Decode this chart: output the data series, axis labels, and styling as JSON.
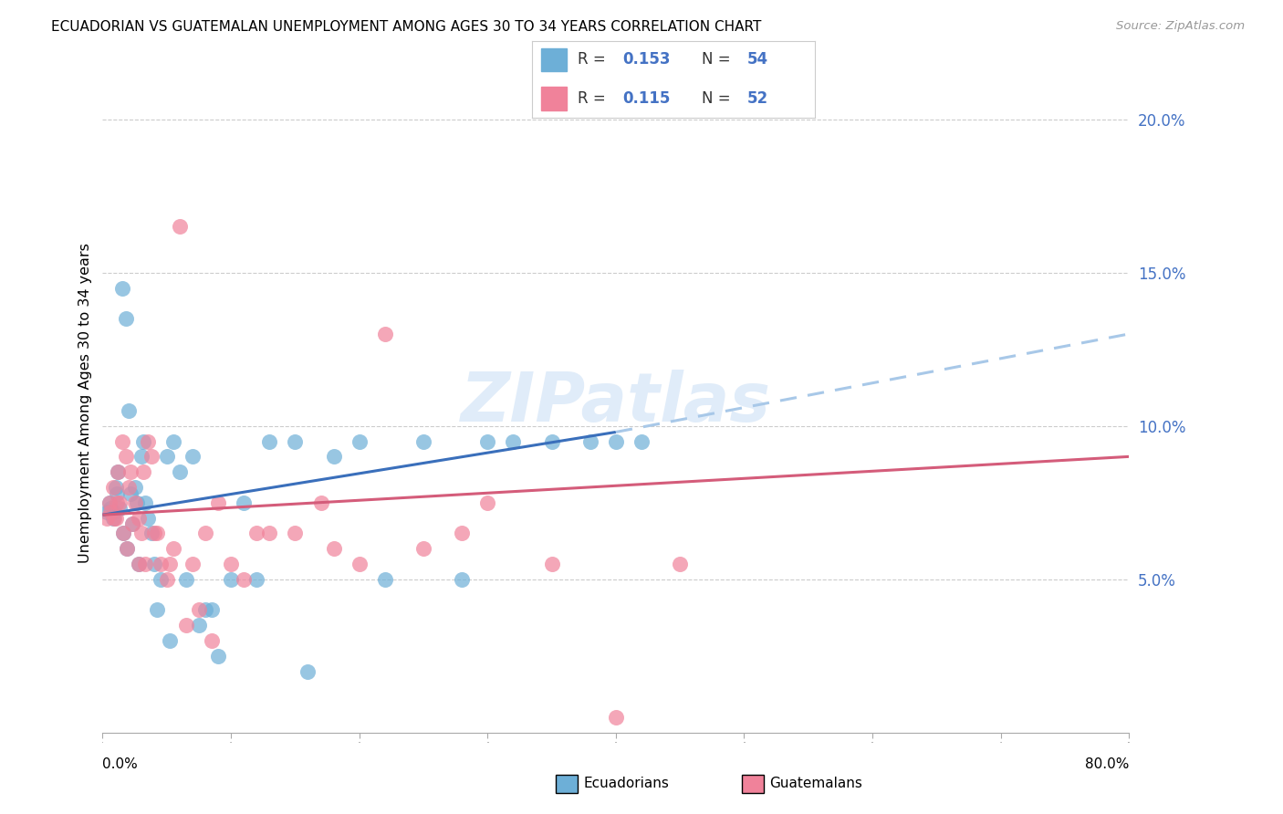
{
  "title": "ECUADORIAN VS GUATEMALAN UNEMPLOYMENT AMONG AGES 30 TO 34 YEARS CORRELATION CHART",
  "source": "Source: ZipAtlas.com",
  "ylabel": "Unemployment Among Ages 30 to 34 years",
  "ecuadorians_color": "#6dafd7",
  "guatemalans_color": "#f0829a",
  "trend_blue": "#3a6fbb",
  "trend_pink": "#d45c7a",
  "trend_dashed_color": "#a8c8e8",
  "watermark": "ZIPatlas",
  "xlim": [
    0,
    80
  ],
  "ylim": [
    0,
    0.215
  ],
  "yticks": [
    0.05,
    0.1,
    0.15,
    0.2
  ],
  "yticklabels": [
    "5.0%",
    "10.0%",
    "15.0%",
    "20.0%"
  ],
  "blue_trend_start_x": 0,
  "blue_trend_start_y": 0.071,
  "blue_trend_solid_end_x": 40,
  "blue_trend_solid_end_y": 0.098,
  "blue_trend_dash_end_x": 80,
  "blue_trend_dash_end_y": 0.13,
  "pink_trend_start_x": 0,
  "pink_trend_start_y": 0.071,
  "pink_trend_end_x": 80,
  "pink_trend_end_y": 0.09,
  "ecuadorians_x": [
    0.5,
    0.8,
    1.0,
    1.2,
    1.5,
    1.8,
    2.0,
    2.2,
    2.5,
    2.7,
    3.0,
    3.2,
    3.5,
    3.8,
    4.0,
    4.5,
    5.0,
    5.5,
    6.0,
    7.0,
    8.0,
    9.0,
    10.0,
    11.0,
    12.0,
    13.0,
    15.0,
    18.0,
    20.0,
    25.0,
    30.0,
    35.0,
    40.0,
    0.3,
    0.6,
    0.9,
    1.1,
    1.3,
    1.6,
    1.9,
    2.3,
    2.8,
    3.3,
    4.2,
    5.2,
    6.5,
    7.5,
    8.5,
    16.0,
    22.0,
    28.0,
    32.0,
    38.0,
    42.0
  ],
  "ecuadorians_y": [
    0.075,
    0.07,
    0.08,
    0.085,
    0.145,
    0.135,
    0.105,
    0.078,
    0.08,
    0.075,
    0.09,
    0.095,
    0.07,
    0.065,
    0.055,
    0.05,
    0.09,
    0.095,
    0.085,
    0.09,
    0.04,
    0.025,
    0.05,
    0.075,
    0.05,
    0.095,
    0.095,
    0.09,
    0.095,
    0.095,
    0.095,
    0.095,
    0.095,
    0.072,
    0.073,
    0.072,
    0.078,
    0.073,
    0.065,
    0.06,
    0.068,
    0.055,
    0.075,
    0.04,
    0.03,
    0.05,
    0.035,
    0.04,
    0.02,
    0.05,
    0.05,
    0.095,
    0.095,
    0.095
  ],
  "guatemalans_x": [
    0.3,
    0.5,
    0.8,
    1.0,
    1.2,
    1.5,
    1.8,
    2.0,
    2.2,
    2.5,
    2.8,
    3.0,
    3.2,
    3.5,
    3.8,
    4.0,
    4.5,
    5.0,
    5.5,
    6.0,
    7.0,
    8.0,
    9.0,
    10.0,
    11.0,
    13.0,
    15.0,
    18.0,
    20.0,
    22.0,
    25.0,
    30.0,
    35.0,
    40.0,
    45.0,
    0.6,
    0.9,
    1.1,
    1.3,
    1.6,
    1.9,
    2.3,
    2.8,
    3.3,
    4.2,
    5.2,
    6.5,
    7.5,
    8.5,
    12.0,
    17.0,
    28.0
  ],
  "guatemalans_y": [
    0.07,
    0.075,
    0.08,
    0.07,
    0.085,
    0.095,
    0.09,
    0.08,
    0.085,
    0.075,
    0.07,
    0.065,
    0.085,
    0.095,
    0.09,
    0.065,
    0.055,
    0.05,
    0.06,
    0.165,
    0.055,
    0.065,
    0.075,
    0.055,
    0.05,
    0.065,
    0.065,
    0.06,
    0.055,
    0.13,
    0.06,
    0.075,
    0.055,
    0.005,
    0.055,
    0.072,
    0.07,
    0.075,
    0.075,
    0.065,
    0.06,
    0.068,
    0.055,
    0.055,
    0.065,
    0.055,
    0.035,
    0.04,
    0.03,
    0.065,
    0.075,
    0.065
  ]
}
